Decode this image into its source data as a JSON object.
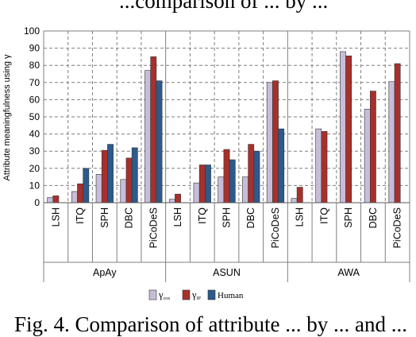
{
  "captions": {
    "top": "...comparison of ... by ...",
    "bottom": "Fig. 4. Comparison of attribute ... by ... and ..."
  },
  "chart_data": {
    "type": "bar",
    "ylabel": "Attribute meaningfulness using γ",
    "ylim": [
      0,
      100
    ],
    "yticks": [
      0,
      10,
      20,
      30,
      40,
      50,
      60,
      70,
      80,
      90,
      100
    ],
    "grid": true,
    "legend_position": "bottom",
    "groups": [
      {
        "name": "ApAy",
        "categories": [
          "LSH",
          "ITQ",
          "SPH",
          "DBC",
          "PiCoDeS"
        ]
      },
      {
        "name": "ASUN",
        "categories": [
          "LSH",
          "ITQ",
          "SPH",
          "DBC",
          "PiCoDeS"
        ]
      },
      {
        "name": "AWA",
        "categories": [
          "LSH",
          "ITQ",
          "SPH",
          "DBC",
          "PiCoDeS"
        ]
      }
    ],
    "series": [
      {
        "name": "γ",
        "subscript": "cox",
        "color": "#c8bdd9",
        "values": [
          3,
          6.5,
          16.5,
          13.5,
          77,
          2,
          11.5,
          15,
          15,
          70,
          2.5,
          43,
          88,
          54.5,
          70.5
        ]
      },
      {
        "name": "γ",
        "subscript": "IP",
        "color": "#a8302c",
        "values": [
          4,
          11,
          30.5,
          26,
          85,
          5,
          22,
          31,
          34,
          71,
          9,
          41.5,
          85.5,
          65,
          81
        ]
      },
      {
        "name": "Human",
        "color": "#2c5a8c",
        "values": [
          null,
          20,
          34,
          32,
          71,
          null,
          22,
          25,
          30,
          43,
          null,
          null,
          null,
          null,
          null
        ]
      }
    ]
  }
}
